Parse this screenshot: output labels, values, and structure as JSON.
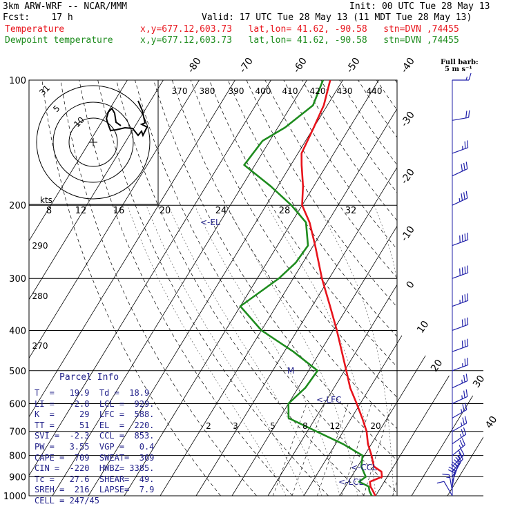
{
  "header": {
    "line1_left": "3km ARW-WRF -- NCAR/MMM",
    "line1_right": "Init: 00 UTC Tue 28 May 13",
    "line2_left": "Fcst:    17 h",
    "line2_right": "Valid: 17 UTC Tue 28 May 13 (11 MDT Tue 28 May 13)",
    "temp_label": "Temperature",
    "temp_info": "x,y=677.12,603.73   lat,lon= 41.62, -90.58   stn=DVN ,74455",
    "dew_label": "Dewpoint temperature",
    "dew_info": "x,y=677.12,603.73   lat,lon= 41.62, -90.58   stn=DVN ,74455"
  },
  "colors": {
    "temperature": "#e8141c",
    "dewpoint": "#1e8c1e",
    "grid": "#000000",
    "info": "#22228a",
    "barbs": "#2222aa"
  },
  "chart_data": {
    "type": "line",
    "title": "",
    "xlabel": "",
    "ylabel": "",
    "pressure_axis_log": true,
    "pressure_ticks": [
      100,
      200,
      300,
      400,
      500,
      600,
      700,
      800,
      900,
      1000
    ],
    "isotherm_labels": [
      -80,
      -70,
      -60,
      -50,
      -40,
      -30,
      -20,
      -10,
      0,
      10,
      20,
      30,
      40
    ],
    "theta_labels": [
      370,
      380,
      390,
      400,
      410,
      420,
      430,
      440
    ],
    "theta_left_labels": [
      290,
      280,
      270
    ],
    "mixing_ratio_labels": [
      2,
      3,
      5,
      8,
      12,
      20
    ],
    "hodo_labels": [
      "kts",
      8,
      12,
      16,
      20,
      24,
      28,
      32
    ],
    "hodo_ring_labels": [
      31,
      5,
      10
    ],
    "el_label": "<-EL",
    "lfc_label": "<-LFC",
    "ccl_label": "<-CCL",
    "lcl_label": "<-LCL",
    "m_label": "M",
    "barb_note": "Full barb:\n5 m s⁻¹",
    "series": [
      {
        "name": "Temperature",
        "points": [
          [
            1000,
            19.9
          ],
          [
            975,
            18.5
          ],
          [
            950,
            17.0
          ],
          [
            925,
            16.0
          ],
          [
            900,
            18.5
          ],
          [
            875,
            17.5
          ],
          [
            850,
            14.5
          ],
          [
            800,
            12.0
          ],
          [
            750,
            9.0
          ],
          [
            700,
            6.5
          ],
          [
            650,
            3.0
          ],
          [
            600,
            -1.0
          ],
          [
            550,
            -5.5
          ],
          [
            500,
            -9.5
          ],
          [
            450,
            -14.0
          ],
          [
            400,
            -19.0
          ],
          [
            350,
            -25.0
          ],
          [
            300,
            -32.0
          ],
          [
            250,
            -39.5
          ],
          [
            220,
            -45.0
          ],
          [
            200,
            -50.0
          ],
          [
            180,
            -53.0
          ],
          [
            160,
            -57.0
          ],
          [
            150,
            -59.0
          ],
          [
            130,
            -60.0
          ],
          [
            115,
            -61.0
          ],
          [
            100,
            -63.5
          ]
        ]
      },
      {
        "name": "Dewpoint",
        "points": [
          [
            1000,
            18.9
          ],
          [
            975,
            17.5
          ],
          [
            950,
            16.5
          ],
          [
            925,
            13.0
          ],
          [
            900,
            14.0
          ],
          [
            850,
            11.0
          ],
          [
            800,
            9.5
          ],
          [
            750,
            2.0
          ],
          [
            700,
            -7.5
          ],
          [
            650,
            -17.5
          ],
          [
            600,
            -20.0
          ],
          [
            550,
            -18.0
          ],
          [
            500,
            -17.5
          ],
          [
            450,
            -27.5
          ],
          [
            400,
            -40.0
          ],
          [
            350,
            -50.0
          ],
          [
            300,
            -44.0
          ],
          [
            275,
            -42.0
          ],
          [
            250,
            -41.5
          ],
          [
            220,
            -46.0
          ],
          [
            200,
            -53.0
          ],
          [
            180,
            -62.0
          ],
          [
            160,
            -73.0
          ],
          [
            140,
            -72.0
          ],
          [
            130,
            -68.0
          ],
          [
            115,
            -64.0
          ],
          [
            100,
            -65.5
          ]
        ]
      }
    ],
    "wind_barbs": [
      {
        "p": 1000,
        "dir": 150,
        "spd": 10
      },
      {
        "p": 975,
        "dir": 170,
        "spd": 15
      },
      {
        "p": 950,
        "dir": 190,
        "spd": 20
      },
      {
        "p": 925,
        "dir": 200,
        "spd": 25
      },
      {
        "p": 900,
        "dir": 210,
        "spd": 25
      },
      {
        "p": 875,
        "dir": 220,
        "spd": 25
      },
      {
        "p": 850,
        "dir": 225,
        "spd": 25
      },
      {
        "p": 800,
        "dir": 230,
        "spd": 25
      },
      {
        "p": 750,
        "dir": 235,
        "spd": 25
      },
      {
        "p": 700,
        "dir": 240,
        "spd": 25
      },
      {
        "p": 650,
        "dir": 240,
        "spd": 25
      },
      {
        "p": 600,
        "dir": 245,
        "spd": 25
      },
      {
        "p": 550,
        "dir": 245,
        "spd": 25
      },
      {
        "p": 500,
        "dir": 250,
        "spd": 25
      },
      {
        "p": 450,
        "dir": 250,
        "spd": 30
      },
      {
        "p": 400,
        "dir": 250,
        "spd": 30
      },
      {
        "p": 350,
        "dir": 250,
        "spd": 35
      },
      {
        "p": 300,
        "dir": 250,
        "spd": 40
      },
      {
        "p": 250,
        "dir": 250,
        "spd": 40
      },
      {
        "p": 200,
        "dir": 245,
        "spd": 35
      },
      {
        "p": 170,
        "dir": 245,
        "spd": 30
      },
      {
        "p": 150,
        "dir": 250,
        "spd": 25
      },
      {
        "p": 125,
        "dir": 260,
        "spd": 20
      },
      {
        "p": 100,
        "dir": 270,
        "spd": 15
      }
    ]
  },
  "parcel_info": {
    "title": "Parcel Info",
    "rows": [
      "T  =   19.9  Td =  18.9",
      "LI =   -2.8  LCL =  929.",
      "K  =     29  LFC =  588.",
      "TT =     51  EL  =  220.",
      "SVI =  -2.3  CCL =  853.",
      "PW =   3.55  VGP =   0.4",
      "CAPE =  709  SWEAT=  369",
      "CIN =  -220  HWBZ= 3385.",
      "Tc =   27.6  SHEAR=  49.",
      "SREH =  216  LAPSE=  7.9",
      "CELL = 247/45"
    ]
  }
}
